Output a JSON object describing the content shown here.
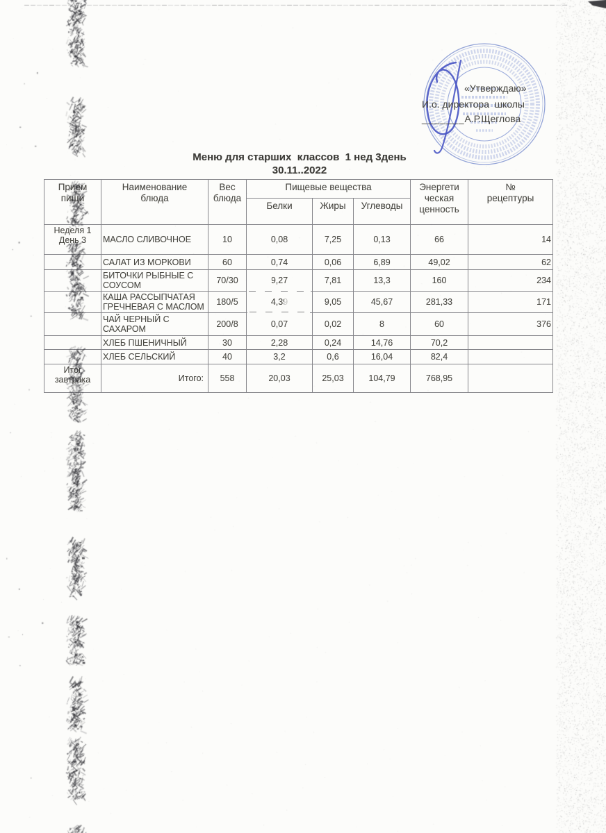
{
  "approval": {
    "quote": "«Утверждаю»",
    "role": "И.о. директора  школы",
    "underscore": "_______",
    "name": "А.Р.Щеглова"
  },
  "title": {
    "line1": "Меню для старших  классов  1 нед 3день",
    "line2": "30.11..2022"
  },
  "table": {
    "headers": {
      "meal": "Прием\nпищи",
      "dish": "Наименование\nблюда",
      "weight": "Вес\nблюда",
      "nutrients": "Пищевые вещества",
      "protein": "Белки",
      "fat": "Жиры",
      "carbs": "Углеводы",
      "energy": "Энергети\nческая\nценность",
      "recipe": "№\nрецептуры"
    },
    "rows": [
      {
        "meal": "Неделя 1\nДень 3",
        "dish": "МАСЛО СЛИВОЧНОЕ",
        "weight": "10",
        "protein": "0,08",
        "fat": "7,25",
        "carbs": "0,13",
        "energy": "66",
        "recipe": "14"
      },
      {
        "meal": "",
        "dish": "САЛАТ ИЗ МОРКОВИ",
        "weight": "60",
        "protein": "0,74",
        "fat": "0,06",
        "carbs": "6,89",
        "energy": "49,02",
        "recipe": "62"
      },
      {
        "meal": "",
        "dish": "БИТОЧКИ РЫБНЫЕ С СОУСОМ",
        "weight": "70/30",
        "protein": "9,27",
        "fat": "7,81",
        "carbs": "13,3",
        "energy": "160",
        "recipe": "234"
      },
      {
        "meal": "",
        "dish": "КАША РАССЫПЧАТАЯ ГРЕЧНЕВАЯ С МАСЛОМ",
        "weight": "180/5",
        "protein": "4,39",
        "fat": "9,05",
        "carbs": "45,67",
        "energy": "281,33",
        "recipe": "171"
      },
      {
        "meal": "",
        "dish": "ЧАЙ ЧЕРНЫЙ С САХАРОМ",
        "weight": "200/8",
        "protein": "0,07",
        "fat": "0,02",
        "carbs": "8",
        "energy": "60",
        "recipe": "376"
      },
      {
        "meal": "",
        "dish": "ХЛЕБ ПШЕНИЧНЫЙ",
        "weight": "30",
        "protein": "2,28",
        "fat": "0,24",
        "carbs": "14,76",
        "energy": "70,2",
        "recipe": ""
      },
      {
        "meal": "",
        "dish": "ХЛЕБ СЕЛЬСКИЙ",
        "weight": "40",
        "protein": "3,2",
        "fat": "0,6",
        "carbs": "16,04",
        "energy": "82,4",
        "recipe": ""
      }
    ],
    "total": {
      "meal": "Итог\nзавтрака",
      "label": "Итого:",
      "weight": "558",
      "protein": "20,03",
      "fat": "25,03",
      "carbs": "104,79",
      "energy": "768,95",
      "recipe": ""
    }
  },
  "colors": {
    "stamp_blue": "#7a8fd0",
    "signature_blue": "#4a57c4",
    "ink": "#45443f",
    "table_border": "#85858a"
  }
}
